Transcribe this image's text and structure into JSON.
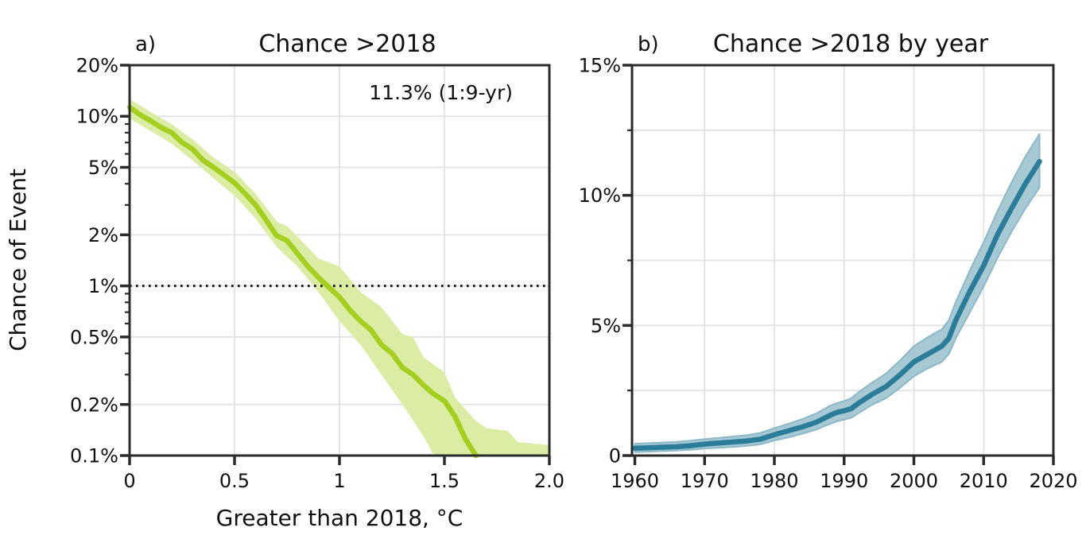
{
  "figure": {
    "ylabel": "Chance of Event",
    "background": "#ffffff",
    "axis_color": "#2b2b2b",
    "grid_color": "#e2e2e2",
    "text_color": "#111111",
    "dotted_line_color": "#111111"
  },
  "chart_data": [
    {
      "id": "a",
      "type": "line",
      "panel_label": "a)",
      "title": "Chance >2018",
      "annotation": "11.3% (1:9-yr)",
      "xlabel": "Greater than 2018, °C",
      "x_scale": "linear",
      "y_scale": "log",
      "xlim": [
        0,
        2
      ],
      "ylim": [
        0.1,
        20
      ],
      "x_ticks": [
        0,
        0.5,
        1,
        1.5,
        2
      ],
      "x_tick_labels": [
        "0",
        "0.5",
        "1",
        "1.5",
        "2.0"
      ],
      "y_ticks": [
        20,
        10,
        5,
        2,
        1,
        0.5,
        0.2,
        0.1
      ],
      "y_tick_labels": [
        "20%",
        "10%",
        "5%",
        "2%",
        "1%",
        "0.5%",
        "0.2%",
        "0.1%"
      ],
      "y_minor_ticks": [
        9,
        8,
        7,
        6,
        4,
        3,
        0.9,
        0.8,
        0.7,
        0.6,
        0.4,
        0.3
      ],
      "grid_x": [
        0.5,
        1,
        1.5
      ],
      "grid_y": [
        10,
        5,
        2,
        1,
        0.5,
        0.2
      ],
      "dotted_hline": 1,
      "legend_position": "none",
      "grid": true,
      "line_color": "#a6ce1f",
      "band_color": "#dbeca4",
      "band_edge_color": "",
      "line": [
        [
          0,
          11.3
        ],
        [
          0.05,
          10.2
        ],
        [
          0.1,
          9.4
        ],
        [
          0.15,
          8.6
        ],
        [
          0.2,
          8.0
        ],
        [
          0.25,
          7.0
        ],
        [
          0.3,
          6.4
        ],
        [
          0.35,
          5.5
        ],
        [
          0.4,
          5.0
        ],
        [
          0.45,
          4.5
        ],
        [
          0.5,
          4.05
        ],
        [
          0.55,
          3.5
        ],
        [
          0.6,
          3.0
        ],
        [
          0.65,
          2.45
        ],
        [
          0.7,
          1.98
        ],
        [
          0.75,
          1.85
        ],
        [
          0.8,
          1.55
        ],
        [
          0.85,
          1.3
        ],
        [
          0.9,
          1.12
        ],
        [
          0.95,
          0.98
        ],
        [
          1.0,
          0.86
        ],
        [
          1.05,
          0.72
        ],
        [
          1.1,
          0.62
        ],
        [
          1.15,
          0.55
        ],
        [
          1.2,
          0.45
        ],
        [
          1.25,
          0.4
        ],
        [
          1.3,
          0.33
        ],
        [
          1.35,
          0.3
        ],
        [
          1.4,
          0.26
        ],
        [
          1.45,
          0.23
        ],
        [
          1.5,
          0.21
        ],
        [
          1.55,
          0.17
        ],
        [
          1.6,
          0.125
        ],
        [
          1.65,
          0.1
        ]
      ],
      "band_upper": [
        [
          0,
          12.6
        ],
        [
          0.1,
          10.6
        ],
        [
          0.2,
          9.0
        ],
        [
          0.3,
          7.3
        ],
        [
          0.4,
          5.7
        ],
        [
          0.5,
          4.7
        ],
        [
          0.6,
          3.5
        ],
        [
          0.7,
          2.4
        ],
        [
          0.75,
          2.25
        ],
        [
          0.8,
          1.95
        ],
        [
          0.9,
          1.45
        ],
        [
          1.0,
          1.3
        ],
        [
          1.05,
          1.1
        ],
        [
          1.1,
          0.92
        ],
        [
          1.2,
          0.75
        ],
        [
          1.3,
          0.52
        ],
        [
          1.35,
          0.5
        ],
        [
          1.4,
          0.38
        ],
        [
          1.5,
          0.31
        ],
        [
          1.55,
          0.22
        ],
        [
          1.65,
          0.16
        ],
        [
          1.7,
          0.145
        ],
        [
          1.8,
          0.14
        ],
        [
          1.85,
          0.12
        ],
        [
          2.0,
          0.115
        ]
      ],
      "band_lower": [
        [
          0,
          9.7
        ],
        [
          0.1,
          8.2
        ],
        [
          0.2,
          6.9
        ],
        [
          0.3,
          5.5
        ],
        [
          0.4,
          4.3
        ],
        [
          0.5,
          3.4
        ],
        [
          0.6,
          2.5
        ],
        [
          0.7,
          1.7
        ],
        [
          0.8,
          1.3
        ],
        [
          0.9,
          0.92
        ],
        [
          1.0,
          0.62
        ],
        [
          1.1,
          0.45
        ],
        [
          1.2,
          0.3
        ],
        [
          1.3,
          0.2
        ],
        [
          1.4,
          0.13
        ],
        [
          1.45,
          0.1
        ],
        [
          2.0,
          0.1
        ]
      ]
    },
    {
      "id": "b",
      "type": "line",
      "panel_label": "b)",
      "title": "Chance >2018 by year",
      "annotation": "",
      "xlabel": "",
      "x_scale": "linear",
      "y_scale": "linear",
      "xlim": [
        1959.6,
        2020
      ],
      "ylim": [
        0,
        15
      ],
      "x_ticks": [
        1960,
        1970,
        1980,
        1990,
        2000,
        2010,
        2020
      ],
      "x_tick_labels": [
        "1960",
        "1970",
        "1980",
        "1990",
        "2000",
        "2010",
        "2020"
      ],
      "y_ticks": [
        15,
        10,
        5,
        0
      ],
      "y_tick_labels": [
        "15%",
        "10%",
        "5%",
        "0"
      ],
      "y_minor_ticks": [
        12.5,
        7.5,
        2.5
      ],
      "grid_x": [
        1970,
        1980,
        1990,
        2000,
        2010
      ],
      "grid_y": [
        12.5,
        10,
        7.5,
        5,
        2.5
      ],
      "dotted_hline": null,
      "legend_position": "none",
      "grid": true,
      "line_color": "#2b7c99",
      "band_color": "#a6c9d4",
      "band_edge_color": "#8db8c7",
      "line": [
        [
          1960,
          0.28
        ],
        [
          1962,
          0.3
        ],
        [
          1964,
          0.32
        ],
        [
          1966,
          0.34
        ],
        [
          1968,
          0.38
        ],
        [
          1970,
          0.44
        ],
        [
          1972,
          0.48
        ],
        [
          1974,
          0.52
        ],
        [
          1976,
          0.56
        ],
        [
          1978,
          0.63
        ],
        [
          1980,
          0.8
        ],
        [
          1982,
          0.95
        ],
        [
          1984,
          1.1
        ],
        [
          1986,
          1.28
        ],
        [
          1988,
          1.55
        ],
        [
          1989,
          1.66
        ],
        [
          1990,
          1.72
        ],
        [
          1991,
          1.8
        ],
        [
          1992,
          2.0
        ],
        [
          1994,
          2.35
        ],
        [
          1996,
          2.65
        ],
        [
          1998,
          3.1
        ],
        [
          2000,
          3.6
        ],
        [
          2002,
          3.9
        ],
        [
          2004,
          4.2
        ],
        [
          2005,
          4.5
        ],
        [
          2006,
          5.2
        ],
        [
          2008,
          6.3
        ],
        [
          2010,
          7.3
        ],
        [
          2012,
          8.5
        ],
        [
          2014,
          9.5
        ],
        [
          2016,
          10.45
        ],
        [
          2018,
          11.3
        ]
      ],
      "band_upper": [
        [
          1960,
          0.45
        ],
        [
          1962,
          0.48
        ],
        [
          1964,
          0.5
        ],
        [
          1966,
          0.53
        ],
        [
          1968,
          0.57
        ],
        [
          1970,
          0.63
        ],
        [
          1972,
          0.68
        ],
        [
          1974,
          0.73
        ],
        [
          1976,
          0.78
        ],
        [
          1978,
          0.87
        ],
        [
          1980,
          1.05
        ],
        [
          1982,
          1.22
        ],
        [
          1984,
          1.4
        ],
        [
          1986,
          1.62
        ],
        [
          1988,
          1.92
        ],
        [
          1989,
          2.02
        ],
        [
          1990,
          2.1
        ],
        [
          1991,
          2.2
        ],
        [
          1992,
          2.42
        ],
        [
          1994,
          2.8
        ],
        [
          1996,
          3.15
        ],
        [
          1998,
          3.65
        ],
        [
          2000,
          4.2
        ],
        [
          2002,
          4.55
        ],
        [
          2004,
          4.85
        ],
        [
          2005,
          5.2
        ],
        [
          2006,
          5.9
        ],
        [
          2008,
          7.1
        ],
        [
          2010,
          8.2
        ],
        [
          2012,
          9.4
        ],
        [
          2014,
          10.5
        ],
        [
          2016,
          11.5
        ],
        [
          2018,
          12.35
        ]
      ],
      "band_lower": [
        [
          1960,
          0.13
        ],
        [
          1962,
          0.15
        ],
        [
          1964,
          0.17
        ],
        [
          1966,
          0.19
        ],
        [
          1968,
          0.22
        ],
        [
          1970,
          0.27
        ],
        [
          1972,
          0.3
        ],
        [
          1974,
          0.33
        ],
        [
          1976,
          0.37
        ],
        [
          1978,
          0.43
        ],
        [
          1980,
          0.58
        ],
        [
          1982,
          0.7
        ],
        [
          1984,
          0.84
        ],
        [
          1986,
          1.0
        ],
        [
          1988,
          1.22
        ],
        [
          1989,
          1.32
        ],
        [
          1990,
          1.38
        ],
        [
          1991,
          1.45
        ],
        [
          1992,
          1.62
        ],
        [
          1994,
          1.95
        ],
        [
          1996,
          2.2
        ],
        [
          1998,
          2.6
        ],
        [
          2000,
          3.05
        ],
        [
          2002,
          3.35
        ],
        [
          2004,
          3.6
        ],
        [
          2005,
          3.9
        ],
        [
          2006,
          4.5
        ],
        [
          2008,
          5.5
        ],
        [
          2010,
          6.5
        ],
        [
          2012,
          7.6
        ],
        [
          2014,
          8.6
        ],
        [
          2016,
          9.5
        ],
        [
          2018,
          10.3
        ]
      ]
    }
  ]
}
